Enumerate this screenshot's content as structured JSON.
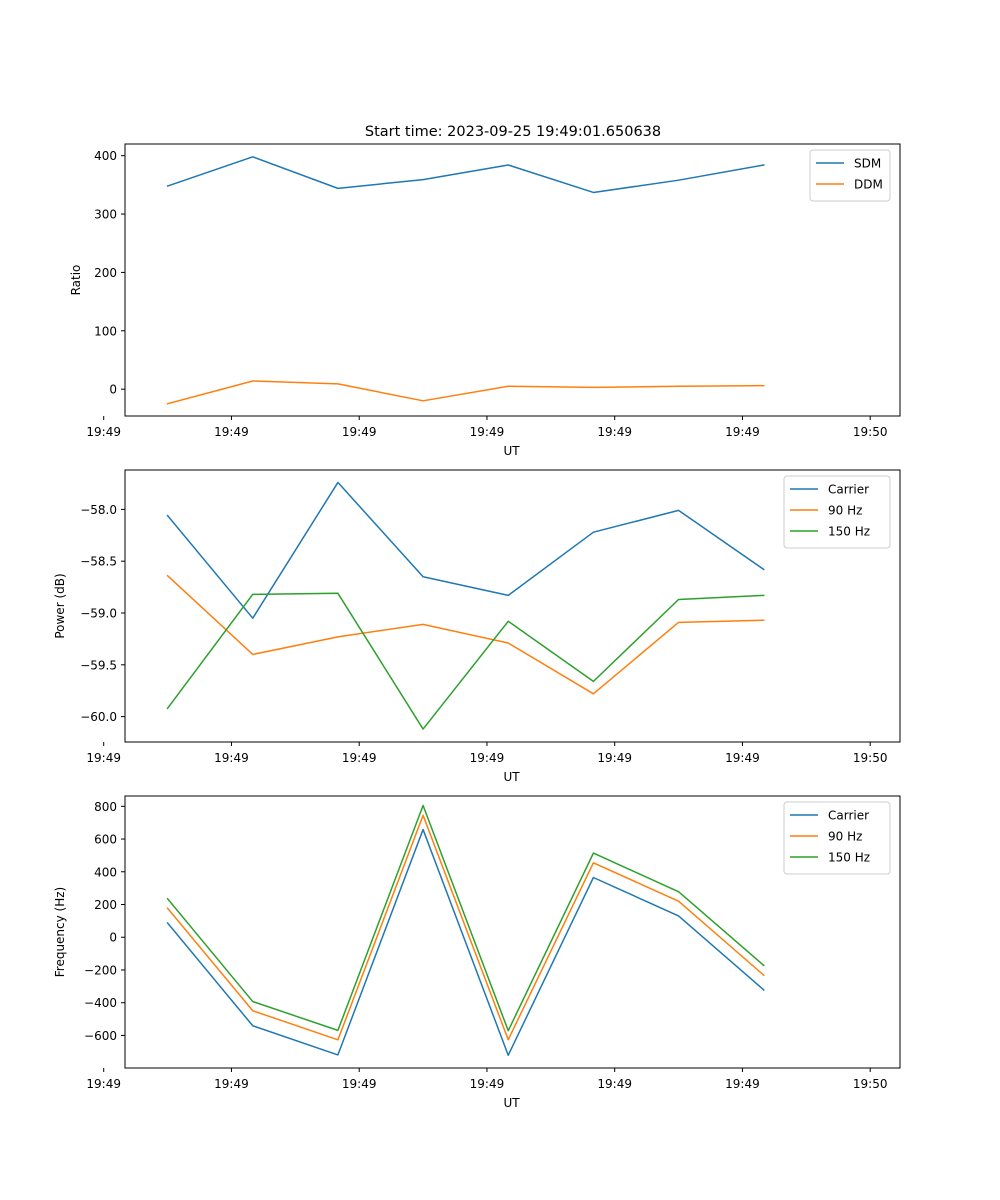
{
  "figure": {
    "title": "Start time: 2023-09-25 19:49:01.650638"
  },
  "chart_data": [
    {
      "type": "line",
      "title": "Start time: 2023-09-25 19:49:01.650638",
      "xlabel": "UT",
      "ylabel": "Ratio",
      "x": [
        0,
        1,
        2,
        3,
        4,
        5,
        6,
        7
      ],
      "xlim": [
        -0.5,
        8.6
      ],
      "xticks": [
        -0.75,
        0.75,
        2.25,
        3.75,
        5.25,
        6.75,
        8.25
      ],
      "xtick_labels": [
        "19:49",
        "19:49",
        "19:49",
        "19:49",
        "19:49",
        "19:49",
        "19:50"
      ],
      "ylim": [
        -46,
        420
      ],
      "yticks": [
        0,
        100,
        200,
        300,
        400
      ],
      "ytick_labels": [
        "0",
        "100",
        "200",
        "300",
        "400"
      ],
      "legend_position": "top-right",
      "grid": false,
      "series": [
        {
          "name": "SDM",
          "color": "#1f77b4",
          "values": [
            348,
            398,
            344,
            359,
            384,
            337,
            358,
            384
          ]
        },
        {
          "name": "DDM",
          "color": "#ff7f0e",
          "values": [
            -25,
            14,
            9,
            -20,
            5,
            3,
            5,
            6
          ]
        }
      ]
    },
    {
      "type": "line",
      "title": "",
      "xlabel": "UT",
      "ylabel": "Power (dB)",
      "x": [
        0,
        1,
        2,
        3,
        4,
        5,
        6,
        7
      ],
      "xlim": [
        -0.5,
        8.6
      ],
      "xticks": [
        -0.75,
        0.75,
        2.25,
        3.75,
        5.25,
        6.75,
        8.25
      ],
      "xtick_labels": [
        "19:49",
        "19:49",
        "19:49",
        "19:49",
        "19:49",
        "19:49",
        "19:50"
      ],
      "ylim": [
        -60.245,
        -57.62
      ],
      "yticks": [
        -60.0,
        -59.5,
        -59.0,
        -58.5,
        -58.0
      ],
      "ytick_labels": [
        "−60.0",
        "−59.5",
        "−59.0",
        "−58.5",
        "−58.0"
      ],
      "legend_position": "top-right",
      "grid": false,
      "series": [
        {
          "name": "Carrier",
          "color": "#1f77b4",
          "values": [
            -58.06,
            -59.05,
            -57.74,
            -58.65,
            -58.83,
            -58.22,
            -58.01,
            -58.58
          ]
        },
        {
          "name": "90 Hz",
          "color": "#ff7f0e",
          "values": [
            -58.64,
            -59.4,
            -59.23,
            -59.11,
            -59.29,
            -59.78,
            -59.09,
            -59.07
          ]
        },
        {
          "name": "150 Hz",
          "color": "#2ca02c",
          "values": [
            -59.92,
            -58.82,
            -58.81,
            -60.12,
            -59.08,
            -59.66,
            -58.87,
            -58.83
          ]
        }
      ]
    },
    {
      "type": "line",
      "title": "",
      "xlabel": "UT",
      "ylabel": "Frequency (Hz)",
      "x": [
        0,
        1,
        2,
        3,
        4,
        5,
        6,
        7
      ],
      "xlim": [
        -0.5,
        8.6
      ],
      "xticks": [
        -0.75,
        0.75,
        2.25,
        3.75,
        5.25,
        6.75,
        8.25
      ],
      "xtick_labels": [
        "19:49",
        "19:49",
        "19:49",
        "19:49",
        "19:49",
        "19:49",
        "19:50"
      ],
      "ylim": [
        -799,
        863
      ],
      "yticks": [
        -600,
        -400,
        -200,
        0,
        200,
        400,
        600,
        800
      ],
      "ytick_labels": [
        "−600",
        "−400",
        "−200",
        "0",
        "200",
        "400",
        "600",
        "800"
      ],
      "legend_position": "top-right",
      "grid": false,
      "series": [
        {
          "name": "Carrier",
          "color": "#1f77b4",
          "values": [
            87,
            -541,
            -719,
            658,
            -721,
            365,
            130,
            -322
          ]
        },
        {
          "name": "90 Hz",
          "color": "#ff7f0e",
          "values": [
            177,
            -449,
            -627,
            745,
            -626,
            455,
            220,
            -232
          ]
        },
        {
          "name": "150 Hz",
          "color": "#2ca02c",
          "values": [
            235,
            -393,
            -569,
            805,
            -571,
            514,
            278,
            -172
          ]
        }
      ]
    }
  ]
}
